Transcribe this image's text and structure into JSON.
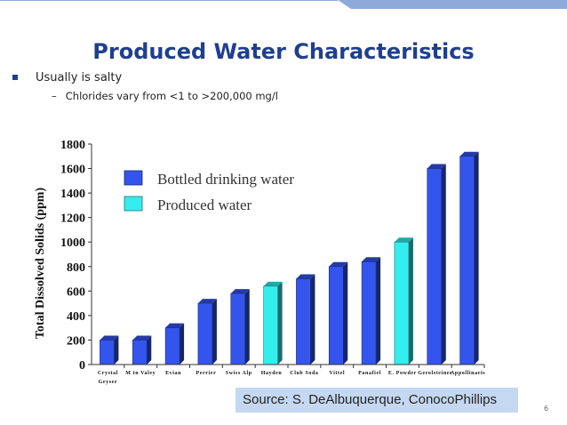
{
  "slide": {
    "title": "Produced Water Characteristics",
    "bullet_1": "Usually is salty",
    "bullet_2_dash": "–",
    "bullet_2": "Chlorides vary from <1 to >200,000 mg/l",
    "source": "Source:  S. DeAlbuquerque, ConocoPhillips",
    "page_number": "6"
  },
  "colors": {
    "title": "#1f3f8f",
    "bottled": "#3355ee",
    "produced": "#33eeee",
    "source_box": "#c5d8f1"
  },
  "chart_data": {
    "type": "bar",
    "title": "",
    "xlabel": "",
    "ylabel": "Total Dissolved Solids (ppm)",
    "ylim": [
      0,
      1800
    ],
    "yticks": [
      0,
      200,
      400,
      600,
      800,
      1000,
      1200,
      1400,
      1600,
      1800
    ],
    "categories": [
      "Crystal Geyser",
      "M tn Valey",
      "Evian",
      "Perrier",
      "Swiss Alp",
      "Hayden",
      "Club Soda",
      "Vittel",
      "Panafiel",
      "E. Powder",
      "Gerolsteiner",
      "Appollinaris"
    ],
    "values": [
      200,
      200,
      300,
      500,
      580,
      640,
      700,
      800,
      840,
      1000,
      1600,
      1700
    ],
    "groups": [
      "bottled",
      "bottled",
      "bottled",
      "bottled",
      "bottled",
      "produced",
      "bottled",
      "bottled",
      "bottled",
      "produced",
      "bottled",
      "bottled"
    ],
    "legend": [
      {
        "key": "bottled",
        "label": "Bottled drinking water"
      },
      {
        "key": "produced",
        "label": "Produced water"
      }
    ],
    "legend_position": "top-left",
    "grid": false
  }
}
